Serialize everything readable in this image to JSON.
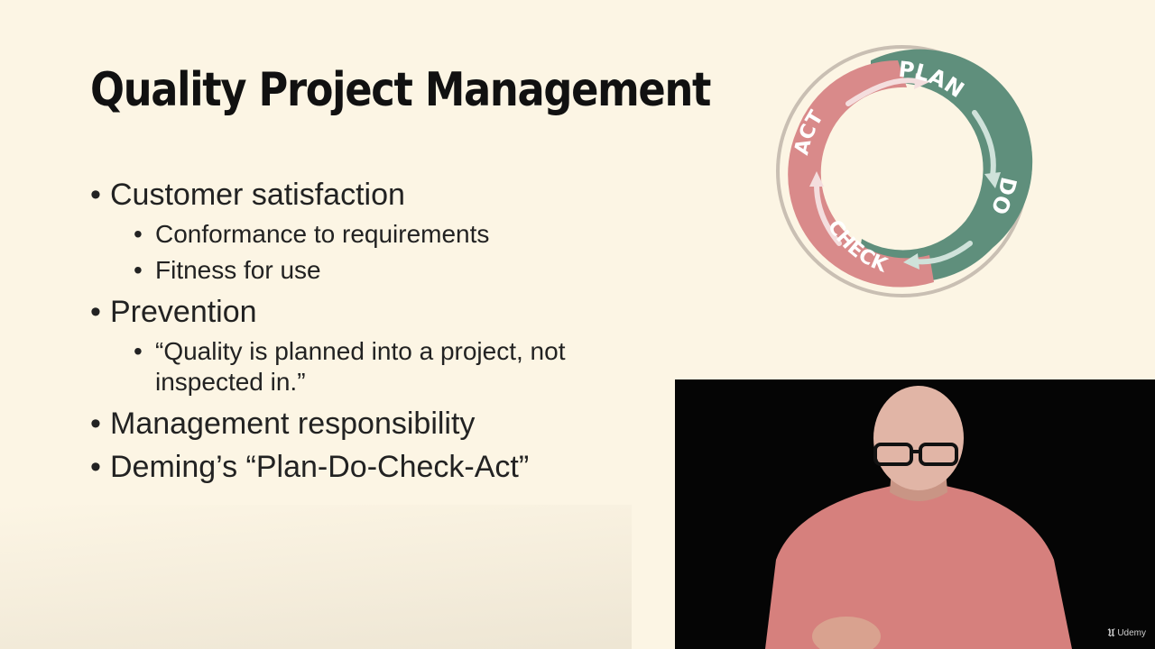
{
  "slide": {
    "title": "Quality Project Management",
    "bullets": [
      {
        "text": "Customer satisfaction",
        "sub": [
          "Conformance to requirements",
          "Fitness for use"
        ]
      },
      {
        "text": "Prevention",
        "sub": [
          "“Quality is planned into a project, not inspected in.”"
        ]
      },
      {
        "text": "Management responsibility",
        "sub": []
      },
      {
        "text": "Deming’s “Plan-Do-Check-Act”",
        "sub": []
      }
    ],
    "bullet_symbol": "•"
  },
  "pdca": {
    "labels": {
      "plan": "PLAN",
      "do": "DO",
      "check": "CHECK",
      "act": "ACT"
    },
    "colors": {
      "green": "#5f8f7c",
      "pink": "#d98a8a",
      "ring_edge": "#c9bfb3"
    }
  },
  "video": {
    "badge": "Udemy",
    "badge_icon": "udemy-logo-icon",
    "colors": {
      "background": "#050505",
      "shirt": "#d6807d",
      "skin": "#e1b5a6"
    }
  }
}
